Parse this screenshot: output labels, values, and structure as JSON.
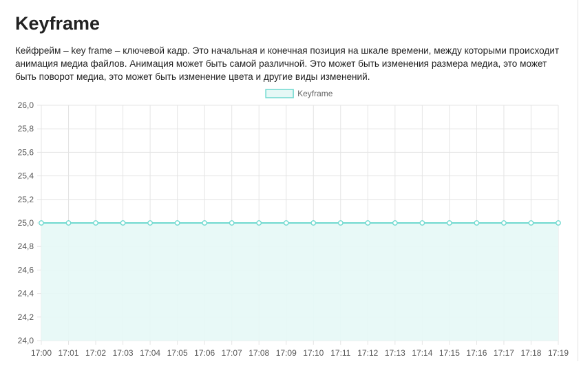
{
  "article": {
    "title": "Keyframe",
    "description": "Кейфрейм – key frame – ключевой кадр. Это начальная и конечная позиция на шкале времени, между которыми происходит анимация медиа файлов. Анимация может быть самой различной. Это может быть изменения размера медиа, это может быть поворот медиа, это может быть изменение цвета и другие виды изменений."
  },
  "chart_data": {
    "type": "line",
    "fill": true,
    "title": "",
    "xlabel": "",
    "ylabel": "",
    "x": [
      "17:00",
      "17:01",
      "17:02",
      "17:03",
      "17:04",
      "17:05",
      "17:06",
      "17:07",
      "17:08",
      "17:09",
      "17:10",
      "17:11",
      "17:12",
      "17:13",
      "17:14",
      "17:15",
      "17:16",
      "17:17",
      "17:18",
      "17:19"
    ],
    "y_ticks": [
      "26,0",
      "25,8",
      "25,6",
      "25,4",
      "25,2",
      "25,0",
      "24,8",
      "24,6",
      "24,4",
      "24,2",
      "24,0"
    ],
    "ylim": [
      24.0,
      26.0
    ],
    "grid": true,
    "legend": "top-center",
    "series": [
      {
        "name": "Keyframe",
        "values": [
          25,
          25,
          25,
          25,
          25,
          25,
          25,
          25,
          25,
          25,
          25,
          25,
          25,
          25,
          25,
          25,
          25,
          25,
          25,
          25
        ],
        "line_color": "#6fd9cf",
        "fill_color": "#e6f8f6"
      }
    ],
    "grid_color": "#e4e4e4",
    "tick_color": "#555555"
  }
}
